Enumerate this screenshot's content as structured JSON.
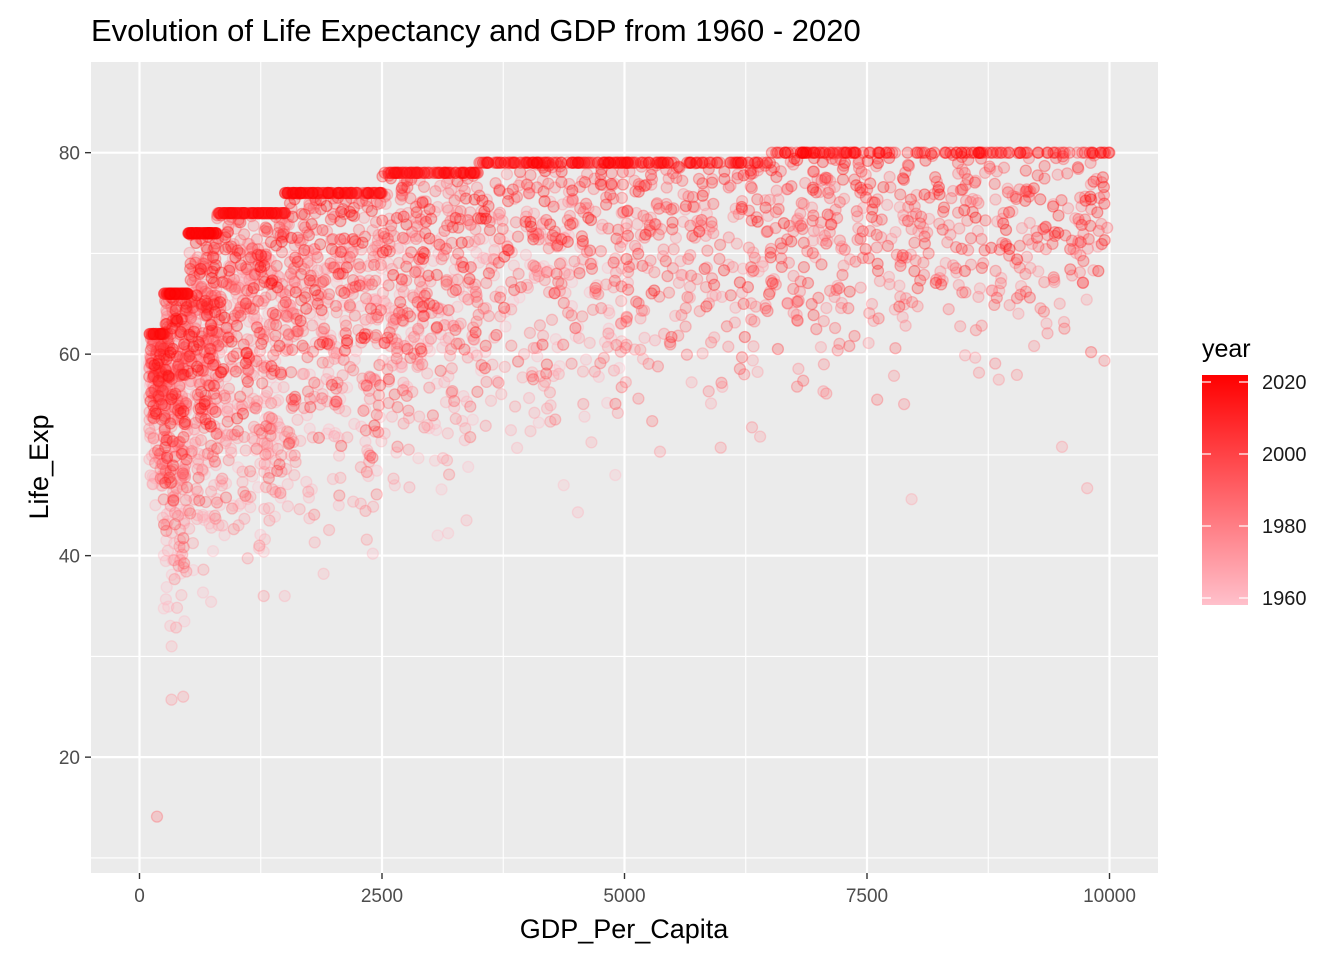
{
  "chart_data": {
    "type": "scatter",
    "title": "Evolution of Life Expectancy and GDP from 1960 - 2020",
    "xlabel": "GDP_Per_Capita",
    "ylabel": "Life_Exp",
    "xlim": [
      -500,
      10500
    ],
    "ylim": [
      8.5,
      89
    ],
    "x_ticks": [
      0,
      2500,
      5000,
      7500,
      10000
    ],
    "x_tick_labels": [
      "0",
      "2500",
      "5000",
      "7500",
      "10000"
    ],
    "y_ticks": [
      20,
      40,
      60,
      80
    ],
    "y_tick_labels": [
      "20",
      "40",
      "60",
      "80"
    ],
    "grid": true,
    "legend": {
      "title": "year",
      "position": "right",
      "type": "colorbar",
      "range": [
        1960,
        2020
      ],
      "ticks": [
        1960,
        1980,
        2000,
        2020
      ],
      "tick_labels": [
        "1960",
        "1980",
        "2000",
        "2020"
      ],
      "color_low": "#ffc0cb",
      "color_high": "#ff0000"
    },
    "point_alpha": 0.25,
    "colors": {
      "panel": "#ebebeb",
      "grid": "#ffffff"
    },
    "outliers": [
      {
        "x": 180,
        "y": 14.1,
        "year": 1990
      },
      {
        "x": 330,
        "y": 25.7,
        "year": 1975
      },
      {
        "x": 450,
        "y": 26.0,
        "year": 1975
      },
      {
        "x": 1280,
        "y": 36.0,
        "year": 1975
      },
      {
        "x": 7960,
        "y": 45.6,
        "year": 1970
      },
      {
        "x": 9770,
        "y": 46.7,
        "year": 1975
      },
      {
        "x": 4520,
        "y": 44.3,
        "year": 1965
      },
      {
        "x": 9510,
        "y": 50.8,
        "year": 1975
      },
      {
        "x": 7160,
        "y": 79.9,
        "year": 2000
      },
      {
        "x": 9990,
        "y": 80.0,
        "year": 2010
      },
      {
        "x": 9720,
        "y": 80.0,
        "year": 2005
      },
      {
        "x": 9810,
        "y": 60.2,
        "year": 2000
      }
    ],
    "series": [
      {
        "x_range": [
          100,
          250
        ],
        "y_range": [
          43,
          62
        ],
        "year_range": [
          1960,
          2020
        ],
        "n": 180
      },
      {
        "x_range": [
          250,
          500
        ],
        "y_range": [
          31,
          66
        ],
        "year_range": [
          1960,
          2020
        ],
        "n": 380
      },
      {
        "x_range": [
          500,
          800
        ],
        "y_range": [
          35,
          72
        ],
        "year_range": [
          1960,
          2020
        ],
        "n": 380
      },
      {
        "x_range": [
          800,
          1500
        ],
        "y_range": [
          36,
          74
        ],
        "year_range": [
          1960,
          2020
        ],
        "n": 520
      },
      {
        "x_range": [
          1500,
          2500
        ],
        "y_range": [
          38,
          76
        ],
        "year_range": [
          1960,
          2020
        ],
        "n": 540
      },
      {
        "x_range": [
          2500,
          3500
        ],
        "y_range": [
          42,
          78
        ],
        "year_range": [
          1960,
          2020
        ],
        "n": 440
      },
      {
        "x_range": [
          3500,
          5000
        ],
        "y_range": [
          47,
          79
        ],
        "year_range": [
          1960,
          2020
        ],
        "n": 440
      },
      {
        "x_range": [
          5000,
          6500
        ],
        "y_range": [
          50,
          79
        ],
        "year_range": [
          1970,
          2020
        ],
        "n": 320
      },
      {
        "x_range": [
          6500,
          8000
        ],
        "y_range": [
          53,
          80
        ],
        "year_range": [
          1975,
          2020
        ],
        "n": 300
      },
      {
        "x_range": [
          8000,
          10000
        ],
        "y_range": [
          57,
          80
        ],
        "year_range": [
          1975,
          2020
        ],
        "n": 320
      }
    ]
  }
}
